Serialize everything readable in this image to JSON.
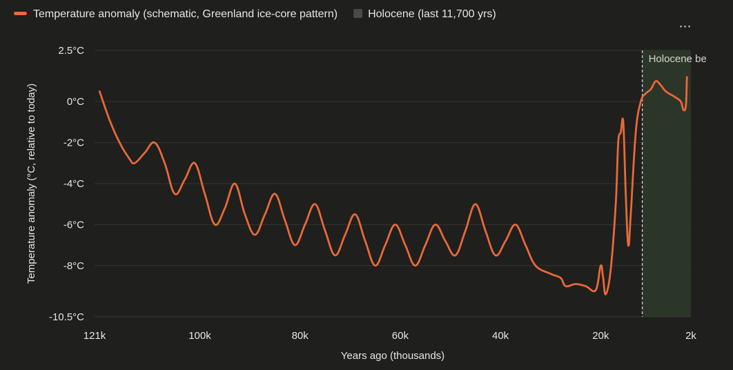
{
  "chart_data": {
    "type": "line",
    "title": "",
    "xlabel": "Years ago (thousands)",
    "ylabel": "Temperature anomaly (°C, relative to today)",
    "xlim": [
      121,
      2
    ],
    "ylim": [
      -10.5,
      2.5
    ],
    "x_ticks": [
      {
        "value": 121,
        "label": "121k"
      },
      {
        "value": 100,
        "label": "100k"
      },
      {
        "value": 80,
        "label": "80k"
      },
      {
        "value": 60,
        "label": "60k"
      },
      {
        "value": 40,
        "label": "40k"
      },
      {
        "value": 20,
        "label": "20k"
      },
      {
        "value": 2,
        "label": "2k"
      }
    ],
    "y_ticks": [
      {
        "value": 2.5,
        "label": "2.5°C"
      },
      {
        "value": 0,
        "label": "0°C"
      },
      {
        "value": -2,
        "label": "-2°C"
      },
      {
        "value": -4,
        "label": "-4°C"
      },
      {
        "value": -6,
        "label": "-6°C"
      },
      {
        "value": -8,
        "label": "-8°C"
      },
      {
        "value": -10.5,
        "label": "-10.5°C"
      }
    ],
    "grid": "horizontal",
    "legend_position": "top-left",
    "series": [
      {
        "name": "Temperature anomaly (schematic, Greenland ice-core pattern)",
        "color": "#e8693a",
        "points": [
          [
            120,
            0.5
          ],
          [
            118,
            -0.9
          ],
          [
            116,
            -2.0
          ],
          [
            114,
            -2.8
          ],
          [
            113,
            -3.0
          ],
          [
            111,
            -2.5
          ],
          [
            109,
            -2.0
          ],
          [
            107,
            -3.0
          ],
          [
            105,
            -4.5
          ],
          [
            103,
            -3.8
          ],
          [
            101,
            -3.0
          ],
          [
            99,
            -4.5
          ],
          [
            97,
            -6.0
          ],
          [
            95,
            -5.2
          ],
          [
            93,
            -4.0
          ],
          [
            91,
            -5.5
          ],
          [
            89,
            -6.5
          ],
          [
            87,
            -5.5
          ],
          [
            85,
            -4.5
          ],
          [
            83,
            -5.8
          ],
          [
            81,
            -7.0
          ],
          [
            79,
            -6.0
          ],
          [
            77,
            -5.0
          ],
          [
            75,
            -6.3
          ],
          [
            73,
            -7.5
          ],
          [
            71,
            -6.5
          ],
          [
            69,
            -5.5
          ],
          [
            67,
            -6.8
          ],
          [
            65,
            -8.0
          ],
          [
            63,
            -7.0
          ],
          [
            61,
            -6.0
          ],
          [
            59,
            -7.0
          ],
          [
            57,
            -8.0
          ],
          [
            55,
            -7.0
          ],
          [
            53,
            -6.0
          ],
          [
            51,
            -6.8
          ],
          [
            49,
            -7.5
          ],
          [
            47,
            -6.3
          ],
          [
            45,
            -5.0
          ],
          [
            43,
            -6.3
          ],
          [
            41,
            -7.5
          ],
          [
            39,
            -6.8
          ],
          [
            37,
            -6.0
          ],
          [
            35,
            -7.0
          ],
          [
            33,
            -8.0
          ],
          [
            30,
            -8.4
          ],
          [
            28,
            -8.6
          ],
          [
            27,
            -9.0
          ],
          [
            25,
            -8.9
          ],
          [
            23,
            -9.0
          ],
          [
            21,
            -9.2
          ],
          [
            20,
            -8.0
          ],
          [
            19.5,
            -8.6
          ],
          [
            19,
            -9.4
          ],
          [
            18,
            -8.2
          ],
          [
            17,
            -5.0
          ],
          [
            16.5,
            -2.0
          ],
          [
            16,
            -1.5
          ],
          [
            15.5,
            -1.0
          ],
          [
            15,
            -4.5
          ],
          [
            14.5,
            -7.0
          ],
          [
            14,
            -5.5
          ],
          [
            13,
            -1.5
          ],
          [
            12,
            0.0
          ],
          [
            11,
            0.4
          ],
          [
            10,
            0.6
          ],
          [
            9,
            1.0
          ],
          [
            8,
            0.8
          ],
          [
            7,
            0.5
          ],
          [
            5,
            0.2
          ],
          [
            4,
            0.0
          ],
          [
            3.5,
            -0.4
          ],
          [
            3,
            -0.2
          ],
          [
            2.8,
            1.2
          ]
        ]
      }
    ],
    "legend": [
      {
        "label": "Temperature anomaly (schematic, Greenland ice-core pattern)",
        "kind": "line",
        "color": "#e8693a"
      },
      {
        "label": "Holocene (last 11,700 yrs)",
        "kind": "box",
        "color": "#4a4c44"
      }
    ],
    "annotations": [
      {
        "type": "shaded-region",
        "x_from": 11.7,
        "x_to": 2,
        "color": "#2e3a2a",
        "label": "Holocene (last 11,700 yrs)"
      },
      {
        "type": "vertical-line",
        "x": 11.7,
        "style": "dashed",
        "text": "Holocene begin"
      }
    ]
  },
  "menu": {
    "label": "⋯"
  }
}
